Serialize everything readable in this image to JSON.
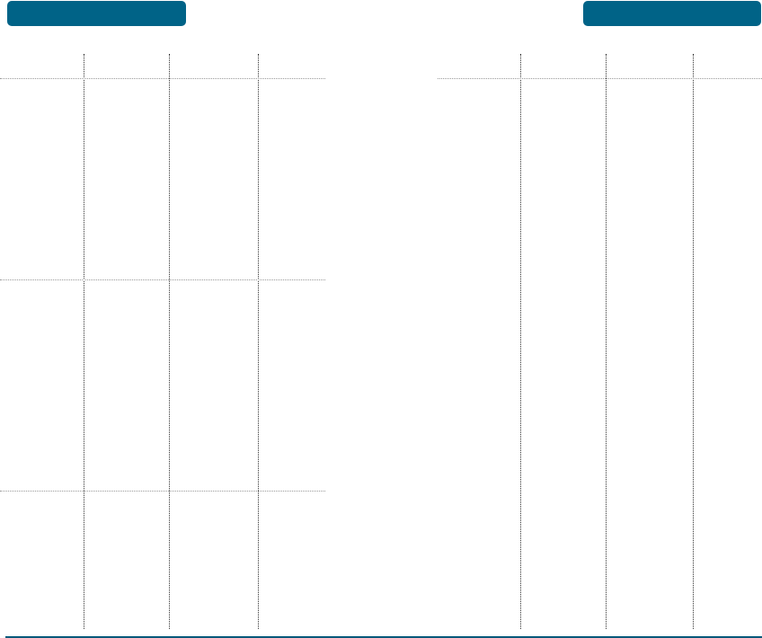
{
  "colors": {
    "header_tab": "#006387",
    "bottom_rule": "#00587a",
    "grid_line": "#999999"
  },
  "left_page": {
    "header_tab_label": ""
  },
  "right_page": {
    "header_tab_label": ""
  }
}
